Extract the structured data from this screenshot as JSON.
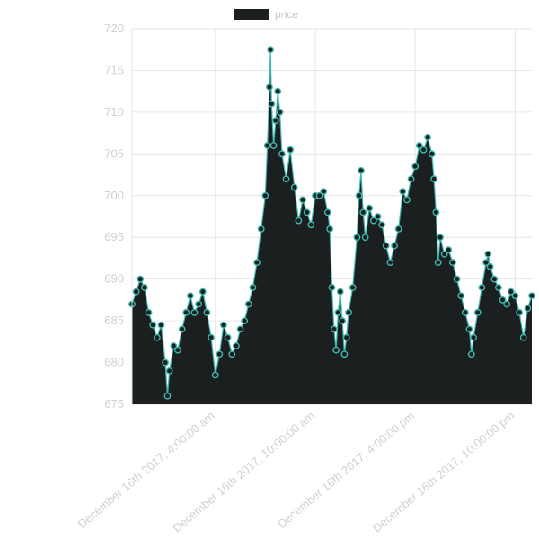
{
  "chart_data": {
    "type": "area",
    "title": "",
    "xlabel": "",
    "ylabel": "",
    "ylim": [
      675,
      720
    ],
    "y_ticks": [
      675,
      680,
      685,
      690,
      695,
      700,
      705,
      710,
      715,
      720
    ],
    "x_range_hours": [
      0,
      19.2
    ],
    "x_ticks": [
      {
        "hour": 4,
        "label": "December 16th 2017, 4:00:00 am"
      },
      {
        "hour": 8.8,
        "label": "December 16th 2017, 10:00:00 am"
      },
      {
        "hour": 13.6,
        "label": "December 16th 2017, 4:00:00 pm"
      },
      {
        "hour": 18.4,
        "label": "December 16th 2017, 10:00:00 pm"
      }
    ],
    "grid": true,
    "legend": {
      "position": "top-center"
    },
    "colors": {
      "fill": "#1b1f1f",
      "line": "#3fb8b0",
      "marker_fill": "#1b1f1f",
      "marker_stroke": "#3fb8b0",
      "grid": "#e6e6e6"
    },
    "series": [
      {
        "name": "price",
        "points": [
          [
            0.0,
            687
          ],
          [
            0.2,
            688.5
          ],
          [
            0.4,
            690
          ],
          [
            0.6,
            689
          ],
          [
            0.8,
            686
          ],
          [
            1.0,
            684.5
          ],
          [
            1.2,
            683
          ],
          [
            1.4,
            684.5
          ],
          [
            1.6,
            680
          ],
          [
            1.7,
            676
          ],
          [
            1.8,
            679
          ],
          [
            2.0,
            682
          ],
          [
            2.2,
            681.5
          ],
          [
            2.4,
            684
          ],
          [
            2.6,
            686
          ],
          [
            2.8,
            688
          ],
          [
            3.0,
            686
          ],
          [
            3.2,
            687
          ],
          [
            3.4,
            688.5
          ],
          [
            3.6,
            686
          ],
          [
            3.8,
            683
          ],
          [
            4.0,
            678.5
          ],
          [
            4.2,
            681
          ],
          [
            4.4,
            684.5
          ],
          [
            4.6,
            683
          ],
          [
            4.8,
            681
          ],
          [
            5.0,
            682
          ],
          [
            5.2,
            684
          ],
          [
            5.4,
            685
          ],
          [
            5.6,
            687
          ],
          [
            5.8,
            689
          ],
          [
            6.0,
            692
          ],
          [
            6.2,
            696
          ],
          [
            6.4,
            700
          ],
          [
            6.5,
            706
          ],
          [
            6.6,
            713
          ],
          [
            6.65,
            717.5
          ],
          [
            6.7,
            711
          ],
          [
            6.8,
            706
          ],
          [
            6.9,
            709
          ],
          [
            7.0,
            712.5
          ],
          [
            7.1,
            710
          ],
          [
            7.2,
            705
          ],
          [
            7.4,
            702
          ],
          [
            7.6,
            705.5
          ],
          [
            7.8,
            701
          ],
          [
            8.0,
            697
          ],
          [
            8.2,
            699.5
          ],
          [
            8.4,
            698
          ],
          [
            8.6,
            696.5
          ],
          [
            8.8,
            700
          ],
          [
            9.0,
            700
          ],
          [
            9.2,
            700.5
          ],
          [
            9.4,
            698
          ],
          [
            9.5,
            696
          ],
          [
            9.6,
            689
          ],
          [
            9.7,
            684
          ],
          [
            9.8,
            681.5
          ],
          [
            9.9,
            686
          ],
          [
            10.0,
            688.5
          ],
          [
            10.1,
            685
          ],
          [
            10.2,
            681
          ],
          [
            10.3,
            683
          ],
          [
            10.4,
            686
          ],
          [
            10.6,
            689
          ],
          [
            10.8,
            695
          ],
          [
            10.9,
            700
          ],
          [
            11.0,
            703
          ],
          [
            11.1,
            698
          ],
          [
            11.2,
            695
          ],
          [
            11.4,
            698.5
          ],
          [
            11.6,
            697
          ],
          [
            11.8,
            697.5
          ],
          [
            12.0,
            696.5
          ],
          [
            12.2,
            694
          ],
          [
            12.4,
            692
          ],
          [
            12.6,
            694
          ],
          [
            12.8,
            696
          ],
          [
            13.0,
            700.5
          ],
          [
            13.2,
            699.5
          ],
          [
            13.4,
            702
          ],
          [
            13.6,
            703.5
          ],
          [
            13.8,
            706
          ],
          [
            14.0,
            705.5
          ],
          [
            14.2,
            707
          ],
          [
            14.4,
            705
          ],
          [
            14.5,
            702
          ],
          [
            14.6,
            698
          ],
          [
            14.7,
            692
          ],
          [
            14.8,
            695
          ],
          [
            15.0,
            693
          ],
          [
            15.2,
            693.5
          ],
          [
            15.4,
            692
          ],
          [
            15.6,
            690
          ],
          [
            15.8,
            688
          ],
          [
            16.0,
            686
          ],
          [
            16.2,
            684
          ],
          [
            16.3,
            681
          ],
          [
            16.4,
            683
          ],
          [
            16.6,
            686
          ],
          [
            16.8,
            689
          ],
          [
            17.0,
            692
          ],
          [
            17.1,
            693
          ],
          [
            17.2,
            691.5
          ],
          [
            17.4,
            690
          ],
          [
            17.6,
            689
          ],
          [
            17.8,
            687.5
          ],
          [
            18.0,
            687
          ],
          [
            18.2,
            688.5
          ],
          [
            18.4,
            688
          ],
          [
            18.6,
            686
          ],
          [
            18.8,
            683
          ],
          [
            19.0,
            686.5
          ],
          [
            19.2,
            688
          ]
        ]
      }
    ]
  }
}
